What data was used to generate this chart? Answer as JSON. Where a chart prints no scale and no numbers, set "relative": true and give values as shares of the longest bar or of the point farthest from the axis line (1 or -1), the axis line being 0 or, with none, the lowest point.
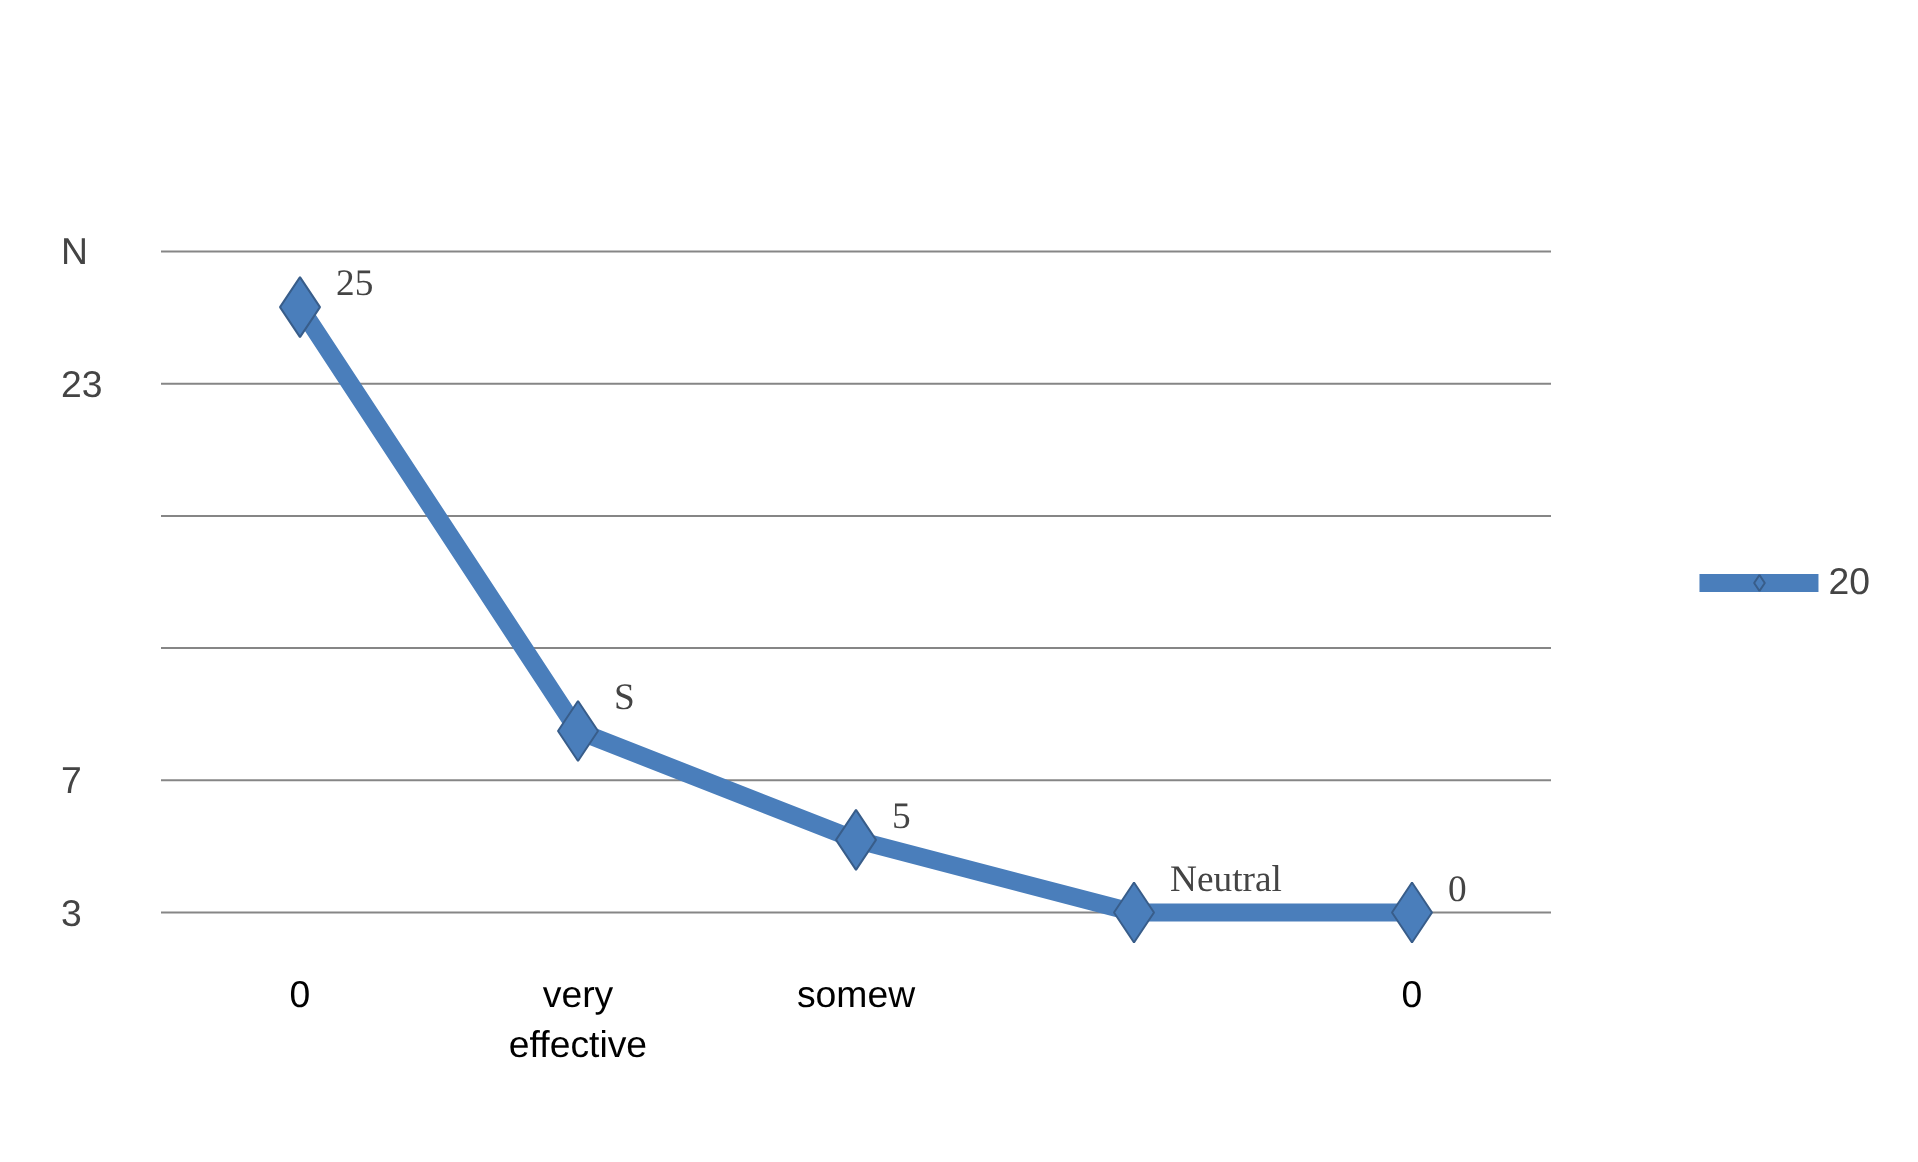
{
  "chart_data": {
    "type": "line",
    "relative": true,
    "categories": [
      "0",
      "very effective",
      "somew",
      null,
      "0"
    ],
    "series": [
      {
        "name": "20",
        "color": "#4a7ebb",
        "values": [
          1,
          0.3,
          0.12,
          0,
          0
        ]
      }
    ],
    "value_labels": [
      "25",
      "S",
      "5",
      "Neutral",
      "0"
    ],
    "annotations": [
      "N",
      "23",
      "7",
      "3"
    ],
    "grid": "y",
    "legend": "right",
    "marker": "diamond",
    "line_style": "solid"
  }
}
